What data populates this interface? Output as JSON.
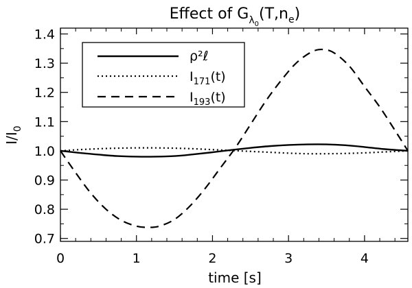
{
  "chart_data": {
    "type": "line",
    "title": {
      "base": "Effect of G",
      "sub": "λ",
      "subsub": "0",
      "args_before": "(T,n",
      "args_sub": "e",
      "args_after": ")"
    },
    "xlabel": "time [s]",
    "ylabel": {
      "base": "I/I",
      "sub": "0"
    },
    "xlim": [
      0,
      4.57
    ],
    "ylim": [
      0.69,
      1.42
    ],
    "xticks": [
      0,
      1,
      2,
      3,
      4
    ],
    "xtick_labels": [
      "0",
      "1",
      "2",
      "3",
      "4"
    ],
    "yticks": [
      0.7,
      0.8,
      0.9,
      1.0,
      1.1,
      1.2,
      1.3,
      1.4
    ],
    "ytick_labels": [
      "0.7",
      "0.8",
      "0.9",
      "1.0",
      "1.1",
      "1.2",
      "1.3",
      "1.4"
    ],
    "grid": false,
    "legend_position": "top-left",
    "series": [
      {
        "legend": {
          "base": "ρ²ℓ"
        },
        "dash": "solid",
        "x": [
          0,
          0.25,
          0.5,
          0.75,
          1.0,
          1.25,
          1.5,
          1.75,
          2.0,
          2.25,
          2.5,
          2.75,
          3.0,
          3.25,
          3.5,
          3.75,
          4.0,
          4.25,
          4.57
        ],
        "y": [
          1.0,
          0.993,
          0.987,
          0.982,
          0.98,
          0.98,
          0.982,
          0.988,
          0.995,
          1.003,
          1.01,
          1.016,
          1.02,
          1.022,
          1.022,
          1.019,
          1.013,
          1.006,
          1.0
        ]
      },
      {
        "legend": {
          "base": "I",
          "sub": "171",
          "after": "(t)"
        },
        "dash": "dotted",
        "x": [
          0,
          0.25,
          0.5,
          0.75,
          1.0,
          1.25,
          1.5,
          1.75,
          2.0,
          2.25,
          2.5,
          2.75,
          3.0,
          3.25,
          3.5,
          3.75,
          4.0,
          4.25,
          4.57
        ],
        "y": [
          1.0,
          1.004,
          1.007,
          1.009,
          1.01,
          1.01,
          1.009,
          1.007,
          1.004,
          1.001,
          0.998,
          0.995,
          0.992,
          0.99,
          0.99,
          0.991,
          0.993,
          0.996,
          1.0
        ]
      },
      {
        "legend": {
          "base": "I",
          "sub": "193",
          "after": "(t)"
        },
        "dash": "dashed",
        "x": [
          0,
          0.2,
          0.4,
          0.6,
          0.8,
          1.0,
          1.15,
          1.3,
          1.5,
          1.7,
          1.9,
          2.1,
          2.3,
          2.5,
          2.7,
          2.9,
          3.1,
          3.3,
          3.45,
          3.6,
          3.8,
          4.0,
          4.2,
          4.4,
          4.57
        ],
        "y": [
          1.0,
          0.925,
          0.855,
          0.8,
          0.762,
          0.742,
          0.738,
          0.742,
          0.765,
          0.81,
          0.87,
          0.94,
          1.01,
          1.09,
          1.17,
          1.24,
          1.3,
          1.338,
          1.347,
          1.335,
          1.29,
          1.22,
          1.15,
          1.07,
          1.0
        ]
      }
    ]
  }
}
